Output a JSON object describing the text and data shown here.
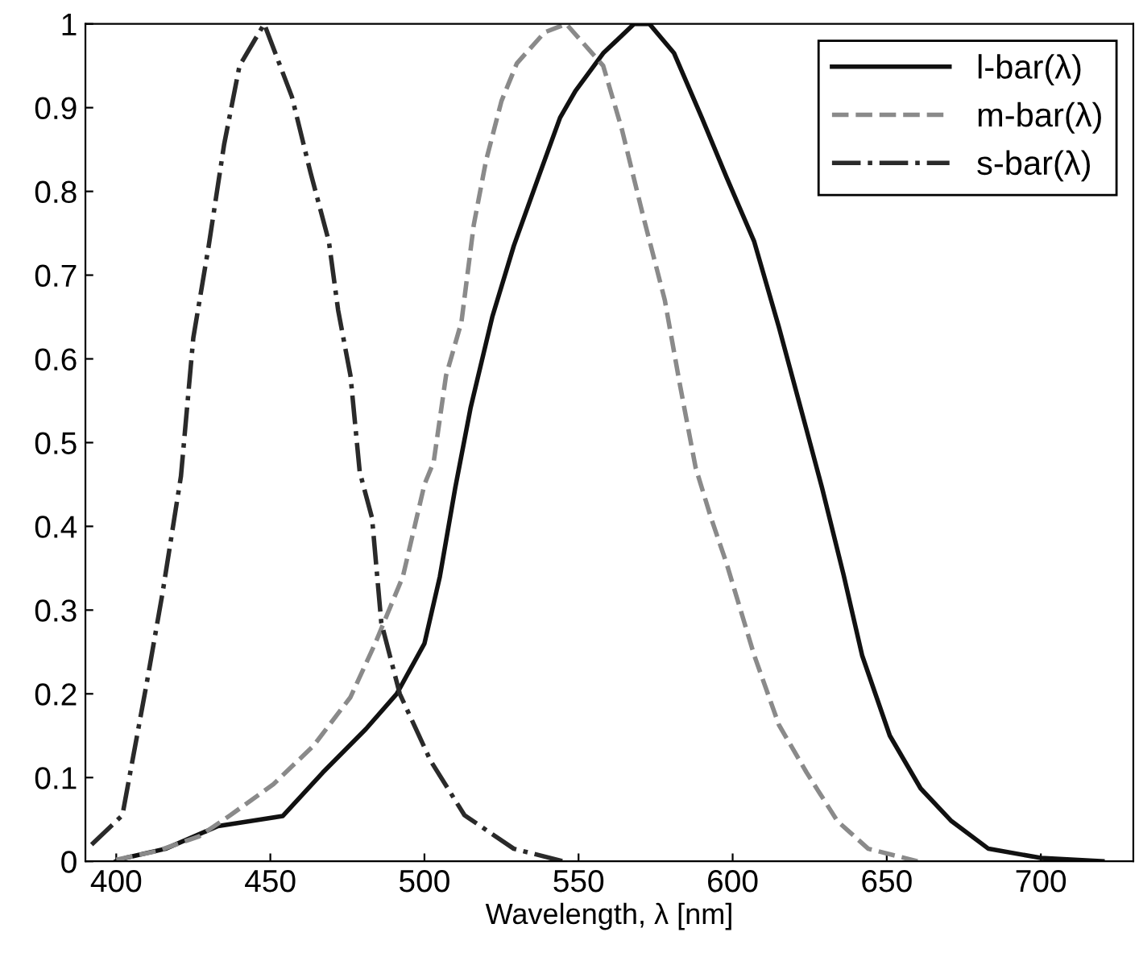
{
  "chart_data": {
    "type": "line",
    "xlabel": "Wavelength, λ [nm]",
    "xlim": [
      390,
      730
    ],
    "ylim": [
      0,
      1
    ],
    "xticks": [
      400,
      450,
      500,
      550,
      600,
      650,
      700
    ],
    "yticks": [
      0,
      0.1,
      0.2,
      0.3,
      0.4,
      0.5,
      0.6,
      0.7,
      0.8,
      0.9,
      1
    ],
    "legend": "top right",
    "grid": false,
    "series": [
      {
        "name": "l-bar(λ)",
        "color": "#111111",
        "line_style": "solid",
        "x": [
          400,
          403,
          416,
          433,
          454,
          467,
          481,
          491,
          500,
          505,
          510,
          515,
          522,
          529,
          537,
          544,
          549,
          558,
          568,
          573,
          581,
          590,
          598,
          607,
          615,
          624,
          629,
          636,
          642,
          651,
          661,
          671,
          683,
          700,
          720
        ],
        "values": [
          0,
          0.004,
          0.015,
          0.042,
          0.054,
          0.106,
          0.158,
          0.2,
          0.26,
          0.34,
          0.446,
          0.542,
          0.65,
          0.735,
          0.817,
          0.888,
          0.92,
          0.965,
          1.0,
          1.0,
          0.965,
          0.888,
          0.817,
          0.74,
          0.638,
          0.515,
          0.446,
          0.342,
          0.246,
          0.15,
          0.087,
          0.048,
          0.015,
          0.004,
          0
        ]
      },
      {
        "name": "m-bar(λ)",
        "color": "#8a8a8a",
        "line_style": "dashed",
        "x": [
          400,
          413,
          427,
          437,
          451,
          464,
          476,
          484,
          493,
          500,
          503,
          507,
          512,
          516,
          520,
          525,
          530,
          539,
          546,
          558,
          564,
          571,
          578,
          583,
          588,
          593,
          598,
          607,
          615,
          624,
          634,
          644,
          660
        ],
        "values": [
          0.002,
          0.012,
          0.03,
          0.055,
          0.092,
          0.138,
          0.196,
          0.26,
          0.34,
          0.45,
          0.477,
          0.58,
          0.644,
          0.76,
          0.837,
          0.908,
          0.953,
          0.99,
          1.0,
          0.95,
          0.875,
          0.77,
          0.67,
          0.567,
          0.47,
          0.41,
          0.356,
          0.246,
          0.163,
          0.106,
          0.048,
          0.015,
          0
        ]
      },
      {
        "name": "s-bar(λ)",
        "color": "#2a2a2a",
        "line_style": "dashdot",
        "x": [
          392,
          402,
          410,
          415,
          421,
          425,
          430,
          435,
          440,
          448,
          457,
          463,
          469,
          472,
          476,
          479,
          483,
          486,
          492,
          502,
          513,
          529,
          545
        ],
        "values": [
          0.02,
          0.055,
          0.215,
          0.32,
          0.46,
          0.625,
          0.735,
          0.856,
          0.95,
          1.0,
          0.913,
          0.823,
          0.74,
          0.658,
          0.58,
          0.465,
          0.41,
          0.285,
          0.2,
          0.12,
          0.055,
          0.015,
          0
        ]
      }
    ]
  }
}
